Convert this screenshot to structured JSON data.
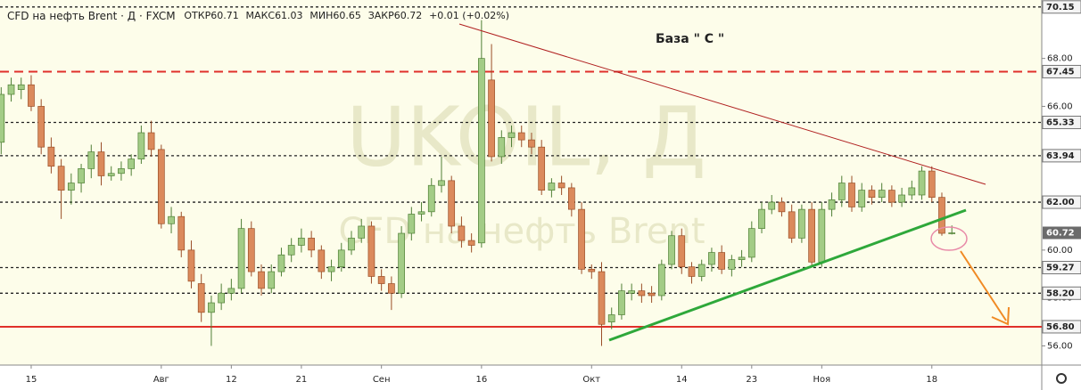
{
  "header": {
    "symbol": "CFD на нефть Brent · Д · FXCM",
    "open_label": "ОТКР",
    "open": 60.71,
    "high_label": "МАКС",
    "high": 61.03,
    "low_label": "МИН",
    "low": 60.65,
    "close_label": "ЗАКР",
    "close": 60.72,
    "change": "+0.01 (+0.02%)"
  },
  "chart_data": {
    "type": "candlestick",
    "watermark": "UKOIL, Д",
    "watermark_sub": "CFD на нефть Brent",
    "annotation": "База  \" С \"",
    "up_color": "#a3cc86",
    "down_color": "#db8a5c",
    "categories": [
      null,
      null,
      null,
      "15",
      null,
      null,
      null,
      null,
      null,
      null,
      null,
      null,
      null,
      null,
      null,
      null,
      "Авг",
      null,
      null,
      null,
      null,
      null,
      null,
      "12",
      null,
      null,
      null,
      null,
      null,
      null,
      "21",
      null,
      null,
      null,
      null,
      null,
      null,
      null,
      "Сен",
      null,
      null,
      null,
      null,
      null,
      null,
      null,
      null,
      null,
      "16",
      null,
      null,
      null,
      null,
      null,
      null,
      null,
      null,
      null,
      null,
      "Окт",
      null,
      null,
      null,
      null,
      null,
      null,
      null,
      null,
      "14",
      null,
      null,
      null,
      null,
      null,
      null,
      "23",
      null,
      null,
      null,
      null,
      null,
      null,
      "Ноя",
      null,
      null,
      null,
      null,
      null,
      null,
      null,
      null,
      null,
      null,
      "18",
      null,
      null
    ],
    "open": [
      64.5,
      66.5,
      66.7,
      66.9,
      66.0,
      64.3,
      63.5,
      62.5,
      62.8,
      63.4,
      64.1,
      63.1,
      63.2,
      63.4,
      63.8,
      64.9,
      64.2,
      61.1,
      61.4,
      60.0,
      58.6,
      57.4,
      57.8,
      58.2,
      58.4,
      60.9,
      59.1,
      58.4,
      59.1,
      59.8,
      60.2,
      60.5,
      60.0,
      59.1,
      59.3,
      60.0,
      60.5,
      61.0,
      58.9,
      58.6,
      58.2,
      60.7,
      61.5,
      61.6,
      62.7,
      62.9,
      61.0,
      60.4,
      60.3,
      67.1,
      63.9,
      64.7,
      64.9,
      64.6,
      64.3,
      62.5,
      62.8,
      62.6,
      61.7,
      59.2,
      59.1,
      57.0,
      57.3,
      58.2,
      58.3,
      58.2,
      58.1,
      59.4,
      60.6,
      59.3,
      58.9,
      59.4,
      59.9,
      59.2,
      59.6,
      59.7,
      60.9,
      61.7,
      62.0,
      61.6,
      60.5,
      61.7,
      59.5,
      61.7,
      62.1,
      62.8,
      61.8,
      62.5,
      62.2,
      62.5,
      62.0,
      62.3,
      62.3,
      63.3,
      62.2,
      60.71
    ],
    "high": [
      66.8,
      67.2,
      67.2,
      67.3,
      66.3,
      64.7,
      63.8,
      63.2,
      63.6,
      64.4,
      64.5,
      63.5,
      63.7,
      64.0,
      65.2,
      65.4,
      64.4,
      61.8,
      61.6,
      60.4,
      59.0,
      58.1,
      58.6,
      58.8,
      61.3,
      61.2,
      59.4,
      59.4,
      60.1,
      60.5,
      60.9,
      60.8,
      60.2,
      59.6,
      60.3,
      60.8,
      61.3,
      61.2,
      59.2,
      58.9,
      61.0,
      61.8,
      62.0,
      63.0,
      63.9,
      63.1,
      61.4,
      60.7,
      69.6,
      68.6,
      65.0,
      65.2,
      65.2,
      64.9,
      64.6,
      63.0,
      63.1,
      62.8,
      62.0,
      59.4,
      59.5,
      57.6,
      58.6,
      58.6,
      58.6,
      58.5,
      59.6,
      60.8,
      60.9,
      59.5,
      59.6,
      60.1,
      60.2,
      59.8,
      60.0,
      61.2,
      62.0,
      62.3,
      62.2,
      61.9,
      61.9,
      62.0,
      62.0,
      62.4,
      63.1,
      63.1,
      62.8,
      62.7,
      62.8,
      62.7,
      62.6,
      62.9,
      63.5,
      63.5,
      62.4,
      61.03
    ],
    "low": [
      64.0,
      66.2,
      66.3,
      65.8,
      64.0,
      63.2,
      61.3,
      61.9,
      62.4,
      63.0,
      62.7,
      62.9,
      62.9,
      63.1,
      63.6,
      63.9,
      60.9,
      60.7,
      59.7,
      58.4,
      57.0,
      56.0,
      57.5,
      57.9,
      58.2,
      58.9,
      58.1,
      58.2,
      58.9,
      59.5,
      59.9,
      59.7,
      58.8,
      58.7,
      59.1,
      59.8,
      60.3,
      58.6,
      58.3,
      57.5,
      58.0,
      60.4,
      61.2,
      61.4,
      62.4,
      60.7,
      60.1,
      59.9,
      60.1,
      63.7,
      63.6,
      64.3,
      64.3,
      64.0,
      62.3,
      62.2,
      62.3,
      61.4,
      59.0,
      58.8,
      56.0,
      56.7,
      57.1,
      57.9,
      57.8,
      57.8,
      57.9,
      59.2,
      59.0,
      58.6,
      58.7,
      59.1,
      59.0,
      58.9,
      59.3,
      59.5,
      60.7,
      61.5,
      61.4,
      60.3,
      60.3,
      59.3,
      59.3,
      61.4,
      61.8,
      61.6,
      61.6,
      61.9,
      62.0,
      61.8,
      61.8,
      62.1,
      62.1,
      62.0,
      60.6,
      60.65
    ],
    "close": [
      66.5,
      66.9,
      66.9,
      66.0,
      64.3,
      63.5,
      62.5,
      62.8,
      63.4,
      64.1,
      63.1,
      63.2,
      63.4,
      63.8,
      64.9,
      64.2,
      61.1,
      61.4,
      60.0,
      58.7,
      57.4,
      57.8,
      58.2,
      58.4,
      60.9,
      59.1,
      58.4,
      59.1,
      59.8,
      60.2,
      60.5,
      60.0,
      59.1,
      59.3,
      60.0,
      60.5,
      61.0,
      58.9,
      58.6,
      58.2,
      60.7,
      61.5,
      61.6,
      62.7,
      62.9,
      61.0,
      60.4,
      60.2,
      68.0,
      63.9,
      64.7,
      64.9,
      64.6,
      64.3,
      62.5,
      62.8,
      62.6,
      61.7,
      59.2,
      59.1,
      56.9,
      57.3,
      58.3,
      58.3,
      58.1,
      58.1,
      59.4,
      60.6,
      59.3,
      58.9,
      59.4,
      59.9,
      59.2,
      59.6,
      59.7,
      60.9,
      61.7,
      62.0,
      61.6,
      60.5,
      61.7,
      59.5,
      61.7,
      62.1,
      62.8,
      61.8,
      62.5,
      62.2,
      62.5,
      62.0,
      62.3,
      62.6,
      63.3,
      62.2,
      60.7,
      60.72
    ],
    "ylim": [
      55.2,
      70.44
    ],
    "yticks": [
      {
        "value": 56,
        "label": "56.00"
      },
      {
        "value": 58,
        "label": "58.00"
      },
      {
        "value": 60,
        "label": "60.00"
      },
      {
        "value": 62,
        "label": "62.00"
      },
      {
        "value": 64,
        "label": "64.00"
      },
      {
        "value": 66,
        "label": "66.00"
      },
      {
        "value": 68,
        "label": "68.00"
      }
    ],
    "levels": [
      {
        "value": 70.15,
        "color": "#222222",
        "dashed": true
      },
      {
        "value": 67.45,
        "color": "#e0302a",
        "dashed": true
      },
      {
        "value": 65.33,
        "color": "#222222",
        "dashed": true
      },
      {
        "value": 63.94,
        "color": "#222222",
        "dashed": true
      },
      {
        "value": 62,
        "label": "62.00",
        "color": "#222222",
        "dashed": true
      },
      {
        "value": 59.27,
        "color": "#222222",
        "dashed": true
      },
      {
        "value": 58.2,
        "label": "58.20",
        "color": "#222222",
        "dashed": true
      },
      {
        "value": 56.8,
        "label": "56.80",
        "color": "#e0302a",
        "dashed": false
      }
    ],
    "grid": false
  }
}
